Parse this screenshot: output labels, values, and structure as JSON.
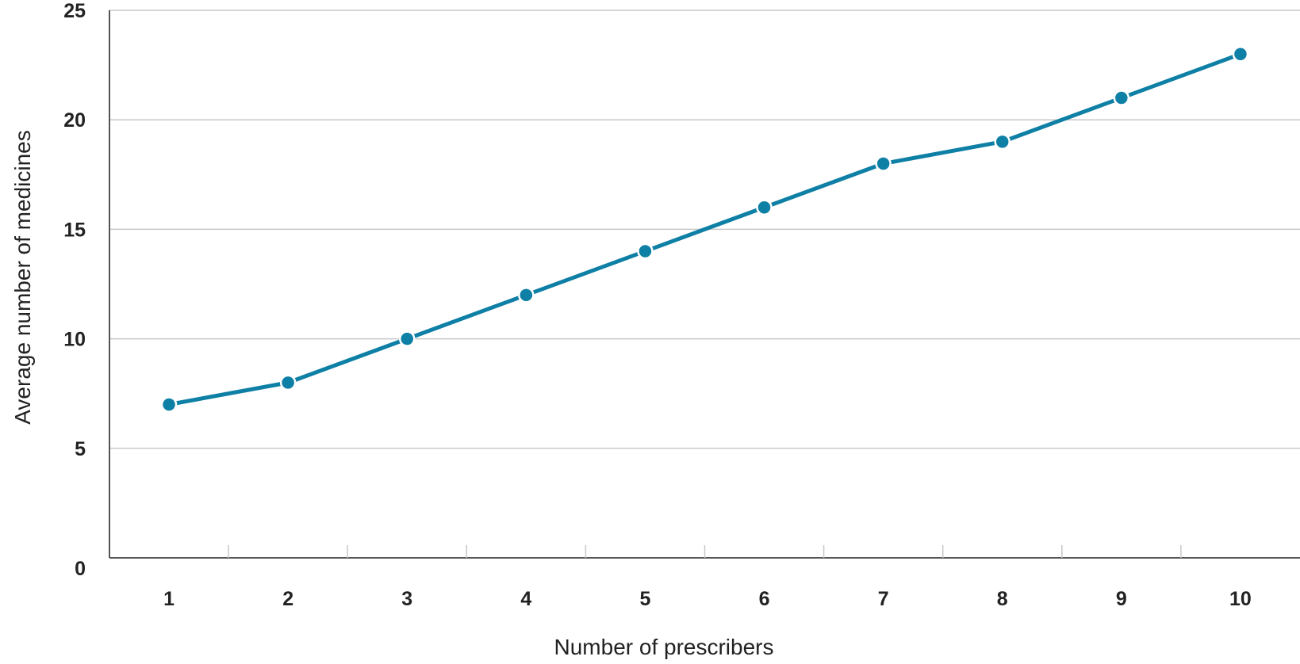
{
  "chart_data": {
    "type": "line",
    "title": "",
    "xlabel": "Number of prescribers",
    "ylabel": "Average number of medicines",
    "x": [
      1,
      2,
      3,
      4,
      5,
      6,
      7,
      8,
      9,
      10
    ],
    "series": [
      {
        "values": [
          7,
          8,
          10,
          12,
          14,
          16,
          18,
          19,
          21,
          23
        ]
      }
    ],
    "xlim": [
      0.5,
      10.5
    ],
    "ylim": [
      0,
      25
    ],
    "yticks": [
      0,
      5,
      10,
      15,
      20,
      25
    ],
    "xticks": [
      "1",
      "2",
      "3",
      "4",
      "5",
      "6",
      "7",
      "8",
      "9",
      "10"
    ],
    "grid": "horizontal",
    "legend": "none",
    "colors": {
      "line": "#0e7fa5",
      "grid": "#c8c8c8",
      "axis": "#555555",
      "text": "#222222"
    }
  }
}
